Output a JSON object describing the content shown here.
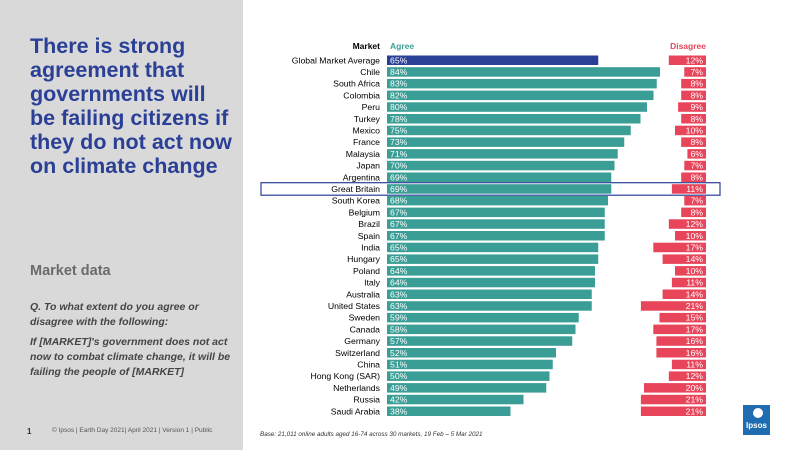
{
  "slide": {
    "title": "There is strong agreement that governments will be failing citizens if they do not act now on climate change",
    "subtitle": "Market data",
    "question": "Q. To what extent do you agree or disagree with the following:",
    "statement": "If [MARKET]'s government does not act now to combat climate change, it will be failing the people of [MARKET]",
    "page_number": "1",
    "footer": "© Ipsos | Earth Day 2021| April 2021 | Version 1 | Public",
    "base_note": "Base: 21,011 online adults aged 16-74 across 30 markets, 19 Feb – 5 Mar 2021",
    "logo_text": "Ipsos"
  },
  "colors": {
    "agree": "#3a9e96",
    "average": "#2a3f96",
    "disagree": "#e8455b",
    "highlight_border": "#2a3f96"
  },
  "chart_data": {
    "type": "bar",
    "headers": {
      "category": "Market",
      "agree": "Agree",
      "disagree": "Disagree"
    },
    "categories": [
      "Global Market Average",
      "Chile",
      "South Africa",
      "Colombia",
      "Peru",
      "Turkey",
      "Mexico",
      "France",
      "Malaysia",
      "Japan",
      "Argentina",
      "Great Britain",
      "South Korea",
      "Belgium",
      "Brazil",
      "Spain",
      "India",
      "Hungary",
      "Poland",
      "Italy",
      "Australia",
      "United States",
      "Sweden",
      "Canada",
      "Germany",
      "Switzerland",
      "China",
      "Hong Kong (SAR)",
      "Netherlands",
      "Russia",
      "Saudi Arabia"
    ],
    "series": [
      {
        "name": "Agree",
        "values": [
          65,
          84,
          83,
          82,
          80,
          78,
          75,
          73,
          71,
          70,
          69,
          69,
          68,
          67,
          67,
          67,
          65,
          65,
          64,
          64,
          63,
          63,
          59,
          58,
          57,
          52,
          51,
          50,
          49,
          42,
          38
        ]
      },
      {
        "name": "Disagree",
        "values": [
          12,
          7,
          8,
          8,
          9,
          8,
          10,
          8,
          6,
          7,
          8,
          11,
          7,
          8,
          12,
          10,
          17,
          14,
          10,
          11,
          14,
          21,
          15,
          17,
          16,
          16,
          11,
          12,
          20,
          21,
          21
        ]
      }
    ],
    "average_category": "Global Market Average",
    "highlighted_category": "Great Britain",
    "unit": "%"
  }
}
